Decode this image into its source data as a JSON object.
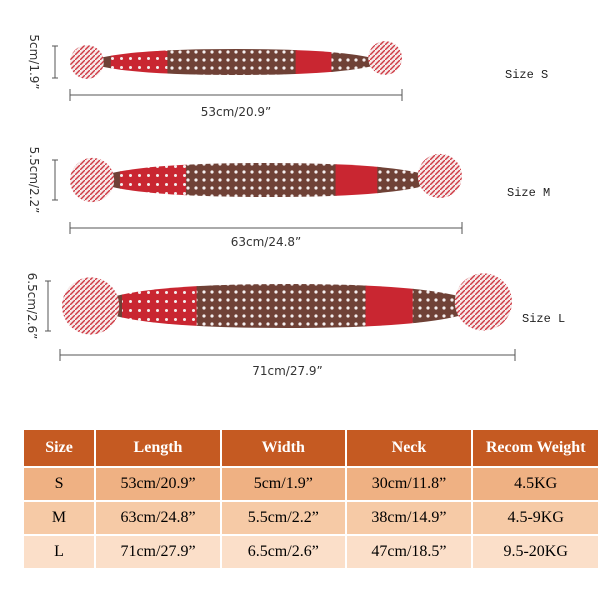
{
  "sizes": [
    {
      "name": "Size S",
      "width": "5cm/1.9”",
      "length": "53cm/20.9”"
    },
    {
      "name": "Size M",
      "width": "5.5cm/2.2”",
      "length": "63cm/24.8”"
    },
    {
      "name": "Size L",
      "width": "6.5cm/2.6”",
      "length": "71cm/27.9”"
    }
  ],
  "table": {
    "header": [
      "Size",
      "Length",
      "Width",
      "Neck",
      "Recom Weight"
    ],
    "rows": [
      [
        "S",
        "53cm/20.9”",
        "5cm/1.9”",
        "30cm/11.8”",
        "4.5KG"
      ],
      [
        "M",
        "63cm/24.8”",
        "5.5cm/2.2”",
        "38cm/14.9”",
        "4.5-9KG"
      ],
      [
        "L",
        "71cm/27.9”",
        "6.5cm/2.6”",
        "47cm/18.5”",
        "9.5-20KG"
      ]
    ]
  }
}
